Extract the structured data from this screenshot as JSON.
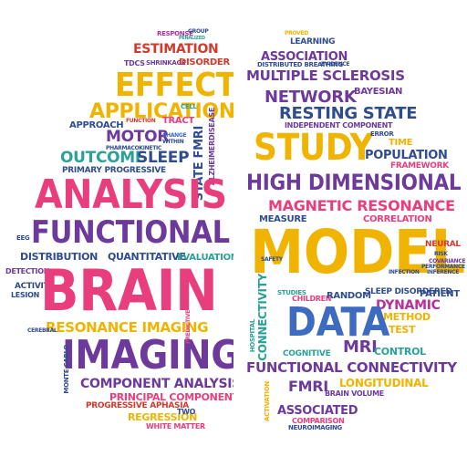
{
  "palette": {
    "pink": "#e83e7e",
    "purple": "#6d3a9c",
    "yellow": "#f0b400",
    "navy": "#2f4c8f",
    "teal": "#2aa198",
    "red": "#d33a2c",
    "orange": "#f07c1f",
    "green": "#2e8b57",
    "blue": "#3d6bbf",
    "magenta": "#b8309a"
  },
  "left": {
    "response": "RESPONSE",
    "group": "GROUP",
    "penalized": "PENALIZED",
    "estimation": "ESTIMATION",
    "tdcs": "TDCS",
    "shrinkage": "SHRINKAGE",
    "disorder": "DISORDER",
    "effect": "EFFECT",
    "application": "APPLICATION",
    "cell": "CELL",
    "approach": "APPROACH",
    "function": "FUNCTION",
    "tract": "TRACT",
    "motor": "MOTOR",
    "pharmacokinetic": "PHARMACOKINETIC",
    "change": "CHANGE",
    "within": "WITHIN",
    "state_fmri": "STATE FMRI",
    "alzheimer": "ALZHEIMERDISEASE",
    "outcome": "OUTCOME",
    "sleep": "SLEEP",
    "primary_progressive": "PRIMARY PROGRESSIVE",
    "analysis": "ANALYSIS",
    "functional": "FUNCTIONAL",
    "distribution": "DISTRIBUTION",
    "quantitative": "QUANTITATIVE",
    "evaluation": "EVALUATION",
    "eeg": "EEG",
    "activity": "ACTIVITY",
    "lesion": "LESION",
    "detection": "DETECTION",
    "brain": "BRAIN",
    "resonance_imaging": "RESONANCE IMAGING",
    "imaging": "IMAGING",
    "component_analysis": "COMPONENT ANALYSIS",
    "principal_component": "PRINCIPAL COMPONENT",
    "progressive_aphasia": "PROGRESSIVE APHASIA",
    "regression": "REGRESSION",
    "white_matter": "WHITE MATTER",
    "two": "TWO",
    "monte_carlo": "MONTE CARLO",
    "predictive": "PREDICTIVE",
    "cerebral": "CEREBRAL"
  },
  "right": {
    "proved": "PROVED",
    "learning": "LEARNING",
    "association": "ASSOCIATION",
    "distributed_breathing": "DISTRIBUTED BREATHING",
    "evidence": "EVIDENCE",
    "multiple_sclerosis": "MULTIPLE SCLEROSIS",
    "network": "NETWORK",
    "bayesian": "BAYESIAN",
    "resting_state": "RESTING STATE",
    "independent_component": "INDEPENDENT COMPONENT",
    "study": "STUDY",
    "error": "ERROR",
    "time": "TIME",
    "population": "POPULATION",
    "framework": "FRAMEWORK",
    "high_dimensional": "HIGH DIMENSIONAL",
    "magnetic_resonance": "MAGNETIC RESONANCE",
    "measure": "MEASURE",
    "correlation": "CORRELATION",
    "model": "MODEL",
    "neural": "NEURAL",
    "studies": "STUDIES",
    "children": "CHILDREN",
    "random": "RANDOM",
    "sleep_disordered": "SLEEP DISORDERED",
    "patient": "PATIENT",
    "dynamic": "DYNAMIC",
    "method": "METHOD",
    "connectivity_v": "CONNECTIVITY",
    "data": "DATA",
    "test": "TEST",
    "mri": "MRI",
    "control": "CONTROL",
    "cognitive": "COGNITIVE",
    "functional_connectivity": "FUNCTIONAL CONNECTIVITY",
    "longitudinal": "LONGITUDINAL",
    "fmri": "FMRI",
    "brain_volume": "BRAIN VOLUME",
    "associated": "ASSOCIATED",
    "comparison": "COMPARISON",
    "neuroimaging": "NEUROIMAGING",
    "activation": "ACTIVATION",
    "infection": "INFECTION",
    "hospital": "HOSPITAL",
    "safety": "SAFETY",
    "covariance": "COVARIANCE",
    "performance": "PERFORMANCE",
    "inference": "INFERENCE",
    "risk": "RISK"
  }
}
